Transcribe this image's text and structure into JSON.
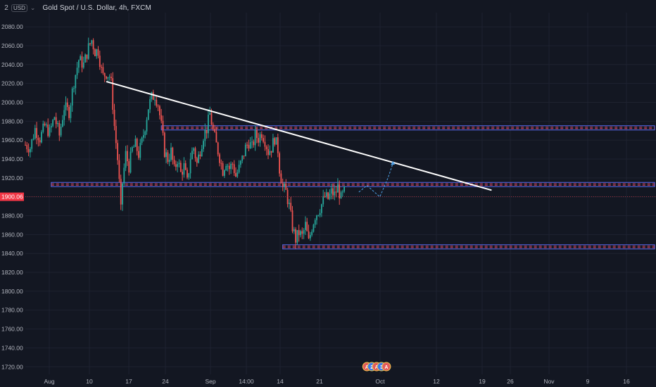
{
  "header": {
    "pane_number": "2",
    "currency_badge": "USD",
    "chevron": "⌄",
    "symbol_title": "Gold Spot / U.S. Dollar, 4h, FXCM"
  },
  "chart_data": {
    "type": "candlestick",
    "symbol": "Gold Spot / U.S. Dollar",
    "interval": "4h",
    "source": "FXCM",
    "ylim": [
      1712,
      2095
    ],
    "y_ticks": [
      "2080.00",
      "2060.00",
      "2040.00",
      "2020.00",
      "2000.00",
      "1980.00",
      "1960.00",
      "1940.00",
      "1920.00",
      "1900.00",
      "1880.00",
      "1860.00",
      "1840.00",
      "1820.00",
      "1800.00",
      "1780.00",
      "1760.00",
      "1740.00",
      "1720.00"
    ],
    "y_tick_values": [
      2080,
      2060,
      2040,
      2020,
      2000,
      1980,
      1960,
      1940,
      1920,
      1900,
      1880,
      1860,
      1840,
      1820,
      1800,
      1780,
      1760,
      1740,
      1720
    ],
    "x_ticks": [
      "Aug",
      "10",
      "17",
      "24",
      "Sep",
      "14:00",
      "14",
      "21",
      "Oct",
      "12",
      "19",
      "26",
      "Nov",
      "9",
      "16"
    ],
    "current_price_label": "1900.06",
    "current_price": 1900.06,
    "price_path": [
      [
        0,
        1955
      ],
      [
        3,
        1952
      ],
      [
        6,
        1972
      ],
      [
        9,
        1962
      ],
      [
        12,
        1975
      ],
      [
        15,
        1968
      ],
      [
        18,
        1985
      ],
      [
        21,
        1965
      ],
      [
        24,
        1995
      ],
      [
        27,
        1990
      ],
      [
        30,
        2022
      ],
      [
        33,
        2045
      ],
      [
        36,
        2040
      ],
      [
        39,
        2058
      ],
      [
        41,
        2066
      ],
      [
        43,
        2054
      ],
      [
        45,
        2055
      ],
      [
        47,
        2034
      ],
      [
        48,
        2028
      ],
      [
        50,
        2031
      ],
      [
        52,
        2028
      ],
      [
        53,
        2020
      ],
      [
        55,
        1975
      ],
      [
        57,
        1940
      ],
      [
        58,
        1915
      ],
      [
        59,
        1885
      ],
      [
        60,
        1915
      ],
      [
        62,
        1945
      ],
      [
        64,
        1932
      ],
      [
        66,
        1950
      ],
      [
        68,
        1955
      ],
      [
        70,
        1945
      ],
      [
        72,
        1958
      ],
      [
        74,
        1975
      ],
      [
        76,
        1995
      ],
      [
        78,
        2005
      ],
      [
        80,
        2008
      ],
      [
        82,
        1998
      ],
      [
        84,
        1975
      ],
      [
        86,
        1948
      ],
      [
        88,
        1940
      ],
      [
        90,
        1948
      ],
      [
        92,
        1928
      ],
      [
        94,
        1940
      ],
      [
        96,
        1925
      ],
      [
        98,
        1932
      ],
      [
        100,
        1915
      ],
      [
        102,
        1942
      ],
      [
        104,
        1952
      ],
      [
        106,
        1935
      ],
      [
        108,
        1950
      ],
      [
        110,
        1965
      ],
      [
        112,
        1972
      ],
      [
        114,
        1988
      ],
      [
        116,
        1970
      ],
      [
        118,
        1955
      ],
      [
        120,
        1942
      ],
      [
        122,
        1928
      ],
      [
        124,
        1938
      ],
      [
        126,
        1930
      ],
      [
        128,
        1935
      ],
      [
        130,
        1922
      ],
      [
        132,
        1930
      ],
      [
        134,
        1940
      ],
      [
        136,
        1952
      ],
      [
        138,
        1958
      ],
      [
        140,
        1952
      ],
      [
        142,
        1965
      ],
      [
        144,
        1962
      ],
      [
        146,
        1968
      ],
      [
        148,
        1960
      ],
      [
        150,
        1948
      ],
      [
        152,
        1952
      ],
      [
        154,
        1962
      ],
      [
        156,
        1950
      ],
      [
        157,
        1930
      ],
      [
        159,
        1910
      ],
      [
        161,
        1905
      ],
      [
        163,
        1890
      ],
      [
        165,
        1868
      ],
      [
        167,
        1855
      ],
      [
        169,
        1862
      ],
      [
        171,
        1858
      ],
      [
        173,
        1870
      ],
      [
        175,
        1852
      ],
      [
        177,
        1868
      ],
      [
        179,
        1880
      ],
      [
        181,
        1885
      ],
      [
        183,
        1892
      ],
      [
        185,
        1900
      ],
      [
        187,
        1898
      ],
      [
        189,
        1905
      ],
      [
        191,
        1902
      ],
      [
        193,
        1910
      ],
      [
        195,
        1898
      ],
      [
        197,
        1905
      ]
    ],
    "overlays": {
      "trendline": {
        "from": [
          50,
          2022
        ],
        "to": [
          288,
          1907
        ],
        "color": "#ffffff"
      },
      "zones": [
        {
          "x1": 84,
          "x2": 397,
          "price": 1973,
          "color": "#5b6df5"
        },
        {
          "x1": 16,
          "x2": 397,
          "price": 1913,
          "color": "#5b6df5"
        },
        {
          "x1": 159,
          "x2": 397,
          "price": 1847,
          "color": "#5b6df5"
        }
      ],
      "projection": {
        "color": "#4ea1e6",
        "points": [
          [
            206,
            1905
          ],
          [
            211,
            1912
          ],
          [
            215,
            1906
          ],
          [
            219,
            1900
          ],
          [
            224,
            1920
          ],
          [
            227,
            1935
          ]
        ]
      },
      "event_markers": [
        {
          "x": 211,
          "letter": "A",
          "color": "#e35a5a"
        },
        {
          "x": 214,
          "letter": "2",
          "color": "#3d7be8"
        },
        {
          "x": 217,
          "letter": "A",
          "color": "#e35a5a"
        },
        {
          "x": 220,
          "letter": "3",
          "color": "#3d7be8"
        },
        {
          "x": 223,
          "letter": "A",
          "color": "#e35a5a"
        }
      ]
    },
    "colors": {
      "up": "#26a69a",
      "down": "#ef5350",
      "grid": "#1e2230",
      "axis_text": "#b2b5be",
      "price_badge": "#f23645"
    },
    "grid": true
  }
}
